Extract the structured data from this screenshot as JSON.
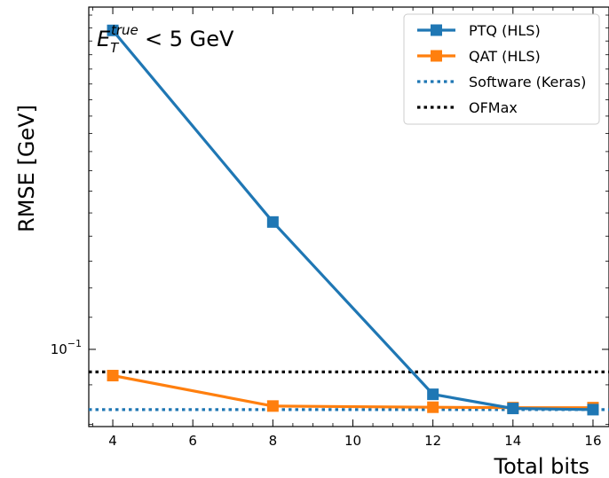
{
  "chart_data": {
    "type": "line",
    "xlabel": "Total bits",
    "ylabel": "RMSE [GeV]",
    "annotation": {
      "symbol": "E",
      "subscript": "T",
      "superscript": "true",
      "rest": "< 5 GeV"
    },
    "x_ticks": [
      4,
      6,
      8,
      10,
      12,
      14,
      16
    ],
    "xlim": [
      3.4,
      16.4
    ],
    "y_scale": "log",
    "ylim": [
      0.0795,
      0.2765
    ],
    "y_major_tick": {
      "value": 0.1,
      "base": "10",
      "exponent": "−1"
    },
    "grid": false,
    "legend_position": "top-right",
    "series": [
      {
        "name": "PTQ (HLS)",
        "color": "#1f77b4",
        "style": "solid",
        "marker": "square",
        "x": [
          4,
          8,
          12,
          14,
          16
        ],
        "y": [
          0.258,
          0.146,
          0.0875,
          0.0839,
          0.0836
        ]
      },
      {
        "name": "QAT (HLS)",
        "color": "#ff7f0e",
        "style": "solid",
        "marker": "square",
        "x": [
          4,
          8,
          12,
          14,
          16
        ],
        "y": [
          0.0925,
          0.0845,
          0.0842,
          0.0841,
          0.0841
        ]
      },
      {
        "name": "Software (Keras)",
        "color": "#1f77b4",
        "style": "dotted",
        "marker": "none",
        "x": [
          3.4,
          16.4
        ],
        "y": [
          0.0836,
          0.0836
        ]
      },
      {
        "name": "OFMax",
        "color": "#000000",
        "style": "dotted",
        "marker": "none",
        "x": [
          3.4,
          16.4
        ],
        "y": [
          0.0935,
          0.0935
        ]
      }
    ]
  }
}
